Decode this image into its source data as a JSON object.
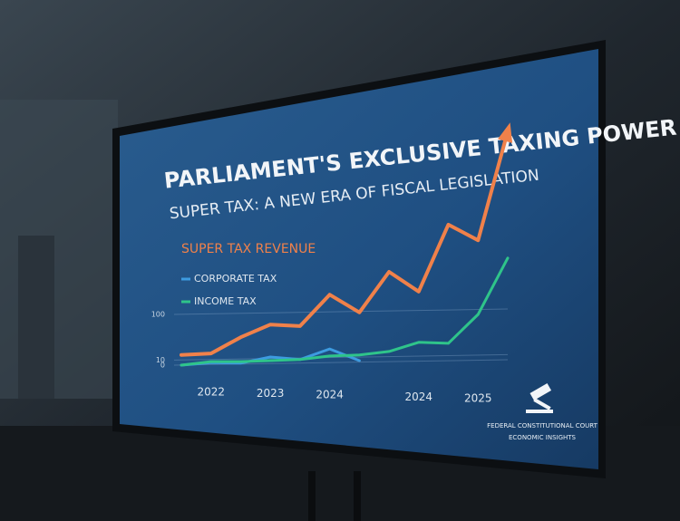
{
  "chart_data": {
    "type": "line",
    "title": "PARLIAMENT'S EXCLUSIVE TAXING POWER",
    "subtitle": "SUPER TAX: A NEW ERA OF FISCAL LEGISLATION",
    "categories": [
      null,
      "2022",
      null,
      "2023",
      null,
      "2024",
      null,
      null,
      "2024",
      null,
      "2025",
      null
    ],
    "series": [
      {
        "name": "SUPER TAX REVENUE",
        "color": "#f0814a",
        "values": [
          20,
          23,
          55,
          80,
          77,
          139,
          104,
          184,
          145,
          277,
          246,
          461
        ]
      },
      {
        "name": "CORPORATE TAX",
        "color": "#3d9be0",
        "values": [
          0,
          5,
          4,
          16,
          11,
          32,
          9,
          null,
          null,
          null,
          null,
          null
        ]
      },
      {
        "name": "INCOME TAX",
        "color": "#2fc48a",
        "values": [
          0,
          7,
          7,
          9,
          11,
          18,
          20,
          27,
          45,
          43,
          100,
          211
        ]
      }
    ],
    "ylim": [
      0,
      500
    ],
    "yticks": [
      0,
      10,
      100
    ],
    "grid": true,
    "footer": [
      "FEDERAL CONSTITUTIONAL COURT",
      "ECONOMIC INSIGHTS"
    ]
  }
}
